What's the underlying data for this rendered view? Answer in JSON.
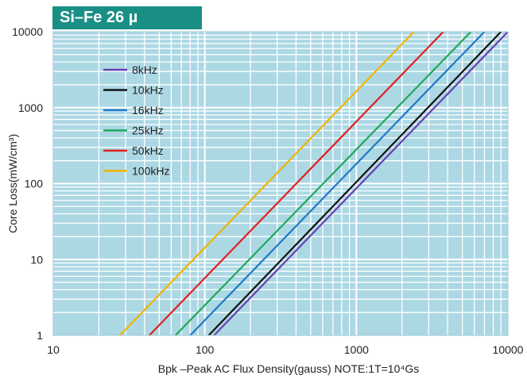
{
  "title": "Si–Fe 26 µ",
  "colors": {
    "plot_background": "#acd8e4",
    "grid": "#ffffff",
    "title_band": "#1a8f86"
  },
  "chart_data": {
    "type": "line",
    "title": "Si–Fe 26 µ",
    "xlabel": "Bpk –Peak AC Flux Density(gauss)  NOTE:1T=10⁴Gs",
    "ylabel": "Core Loss(mW/cm³)",
    "x_scale": "log",
    "y_scale": "log",
    "xlim": [
      10,
      10000
    ],
    "ylim": [
      1,
      10000
    ],
    "x_ticks": [
      10,
      100,
      1000,
      10000
    ],
    "y_ticks": [
      1,
      10,
      100,
      1000,
      10000
    ],
    "x_tick_labels": [
      "10",
      "100",
      "1000",
      "10000"
    ],
    "y_tick_labels": [
      "1",
      "10",
      "100",
      "1000",
      "10000"
    ],
    "grid": true,
    "legend_position": "top-left",
    "series": [
      {
        "name": "8kHz",
        "color": "#6a3fb0",
        "x": [
          115,
          10000
        ],
        "y": [
          1,
          10000
        ]
      },
      {
        "name": "10kHz",
        "color": "#111111",
        "x": [
          106,
          9000
        ],
        "y": [
          1,
          10000
        ]
      },
      {
        "name": "16kHz",
        "color": "#1f78c8",
        "x": [
          80,
          7000
        ],
        "y": [
          1,
          10000
        ]
      },
      {
        "name": "25kHz",
        "color": "#20a85a",
        "x": [
          64,
          5700
        ],
        "y": [
          1,
          10000
        ]
      },
      {
        "name": "50kHz",
        "color": "#e02020",
        "x": [
          43,
          3750
        ],
        "y": [
          1,
          10000
        ]
      },
      {
        "name": "100kHz",
        "color": "#f0b400",
        "x": [
          27.5,
          2400
        ],
        "y": [
          1,
          10000
        ]
      }
    ]
  }
}
